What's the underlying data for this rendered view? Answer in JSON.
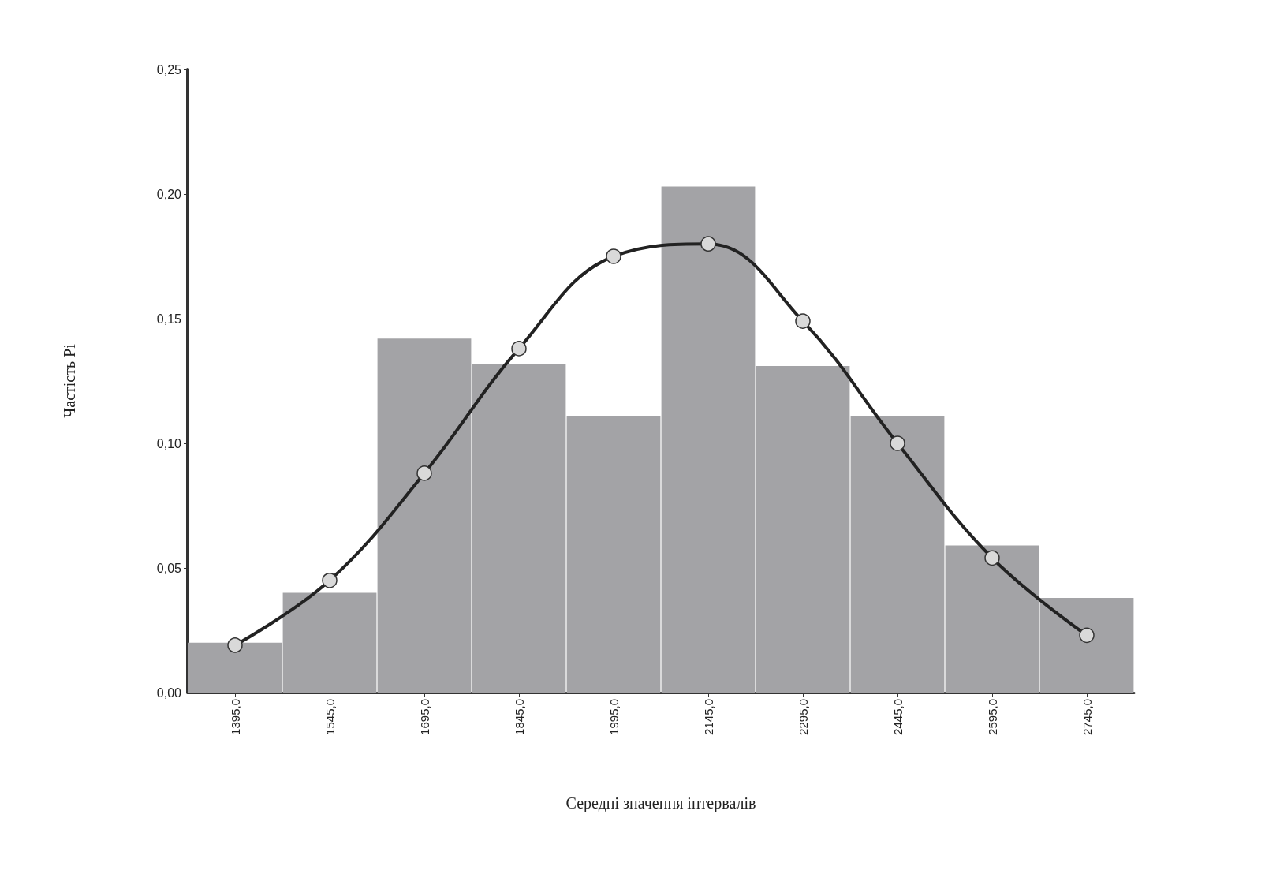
{
  "chart_data": {
    "type": "bar",
    "xlabel": "Середні значення інтервалів",
    "ylabel": "Частість Pi",
    "categories": [
      "1395,0",
      "1545,0",
      "1695,0",
      "1845,0",
      "1995,0",
      "2145,0",
      "2295,0",
      "2445,0",
      "2595,0",
      "2745,0"
    ],
    "series": [
      {
        "color": "#a3a3a6",
        "values": [
          0.02,
          0.04,
          0.142,
          0.132,
          0.111,
          0.203,
          0.131,
          0.111,
          0.059,
          0.038
        ]
      },
      {
        "type": "line",
        "color": "#222222",
        "marker": "circle",
        "line_style": "solid",
        "values": [
          0.019,
          0.045,
          0.088,
          0.138,
          0.175,
          0.18,
          0.149,
          0.1,
          0.054,
          0.023
        ]
      }
    ],
    "ylim": [
      0,
      0.25
    ],
    "yticks": [
      {
        "value": 0,
        "label": "0,00"
      },
      {
        "value": 0.05,
        "label": "0,05"
      },
      {
        "value": 0.1,
        "label": "0,10"
      },
      {
        "value": 0.15,
        "label": "0,15"
      },
      {
        "value": 0.2,
        "label": "0,20"
      },
      {
        "value": 0.25,
        "label": "0,25"
      }
    ]
  }
}
